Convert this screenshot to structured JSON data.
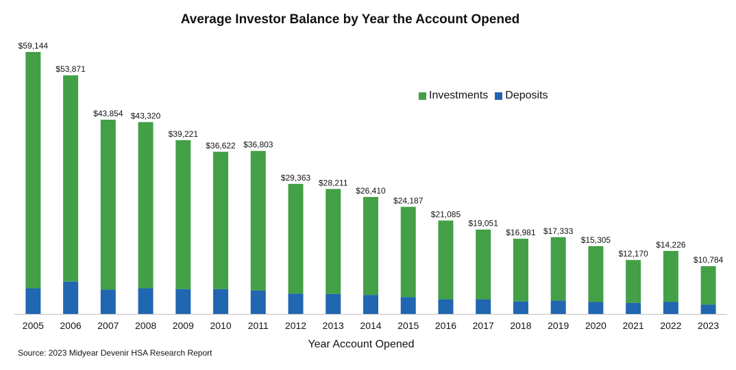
{
  "chart_data": {
    "type": "bar",
    "stacked": true,
    "title": "Average Investor Balance by Year the Account Opened",
    "xlabel": "Year Account Opened",
    "ylabel": "",
    "ylim": [
      0,
      60000
    ],
    "grid": false,
    "legend_position": "top-right",
    "categories": [
      "2005",
      "2006",
      "2007",
      "2008",
      "2009",
      "2010",
      "2011",
      "2012",
      "2013",
      "2014",
      "2015",
      "2016",
      "2017",
      "2018",
      "2019",
      "2020",
      "2021",
      "2022",
      "2023"
    ],
    "series": [
      {
        "name": "Deposits",
        "color": "#2066b0",
        "values": [
          5800,
          7300,
          5500,
          5800,
          5600,
          5600,
          5300,
          4600,
          4500,
          4300,
          3800,
          3300,
          3300,
          2800,
          3000,
          2700,
          2500,
          2700,
          2100
        ]
      },
      {
        "name": "Investments",
        "color": "#43a047",
        "values": [
          53344,
          46571,
          38354,
          37520,
          33621,
          31022,
          31503,
          24763,
          23711,
          22110,
          20387,
          17785,
          15751,
          14181,
          14333,
          12605,
          9670,
          11526,
          8684
        ]
      }
    ],
    "totals": [
      59144,
      53871,
      43854,
      43320,
      39221,
      36622,
      36803,
      29363,
      28211,
      26410,
      24187,
      21085,
      19051,
      16981,
      17333,
      15305,
      12170,
      14226,
      10784
    ],
    "total_labels": [
      "$59,144",
      "$53,871",
      "$43,854",
      "$43,320",
      "$39,221",
      "$36,622",
      "$36,803",
      "$29,363",
      "$28,211",
      "$26,410",
      "$24,187",
      "$21,085",
      "$19,051",
      "$16,981",
      "$17,333",
      "$15,305",
      "$12,170",
      "$14,226",
      "$10,784"
    ],
    "legend": [
      {
        "label": "Investments",
        "color": "#43a047"
      },
      {
        "label": "Deposits",
        "color": "#2066b0"
      }
    ]
  },
  "source": "Source: 2023 Midyear Devenir HSA Research Report",
  "axis_color": "#bfbfbf"
}
